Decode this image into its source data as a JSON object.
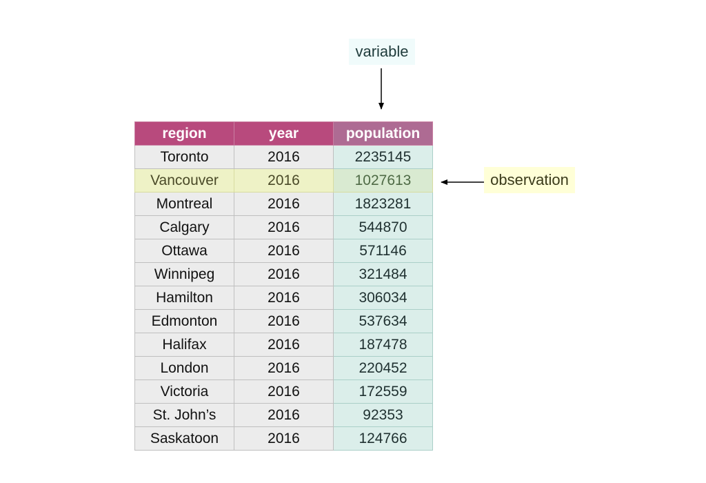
{
  "annotations": {
    "variable": "variable",
    "observation": "observation"
  },
  "table": {
    "headers": [
      "region",
      "year",
      "population"
    ],
    "highlighted_row": 1,
    "rows": [
      [
        "Toronto",
        "2016",
        "2235145"
      ],
      [
        "Vancouver",
        "2016",
        "1027613"
      ],
      [
        "Montreal",
        "2016",
        "1823281"
      ],
      [
        "Calgary",
        "2016",
        "544870"
      ],
      [
        "Ottawa",
        "2016",
        "571146"
      ],
      [
        "Winnipeg",
        "2016",
        "321484"
      ],
      [
        "Hamilton",
        "2016",
        "306034"
      ],
      [
        "Edmonton",
        "2016",
        "537634"
      ],
      [
        "Halifax",
        "2016",
        "187478"
      ],
      [
        "London",
        "2016",
        "220452"
      ],
      [
        "Victoria",
        "2016",
        "172559"
      ],
      [
        "St. John’s",
        "2016",
        "92353"
      ],
      [
        "Saskatoon",
        "2016",
        "124766"
      ]
    ]
  },
  "colors": {
    "header": "#b84a7d",
    "variable_column": "#dbeeea",
    "observation_row": "#eef2c6",
    "cell": "#ececec"
  }
}
